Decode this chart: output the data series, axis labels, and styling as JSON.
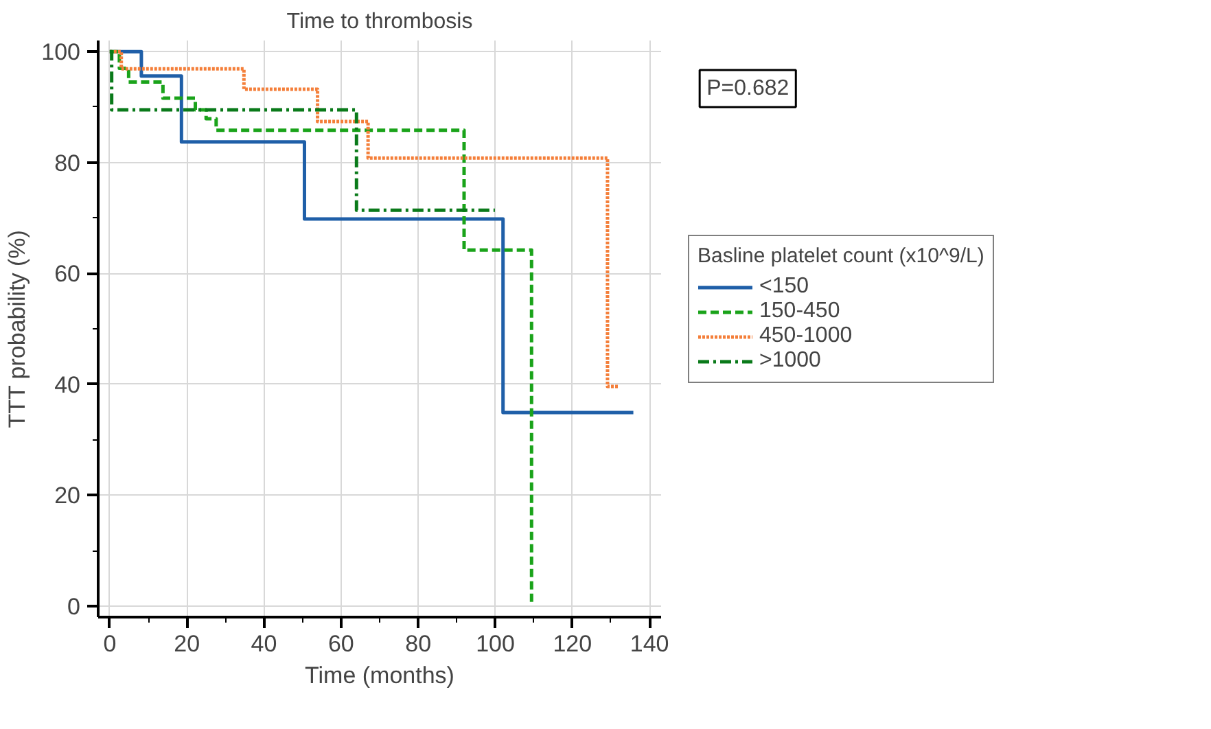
{
  "chart_data": {
    "type": "step",
    "title": "Time to thrombosis",
    "xlabel": "Time (months)",
    "ylabel": "TTT probability (%)",
    "legend_title": "Basline platelet count (x10^9/L)",
    "annotations": [
      "P=0.682"
    ],
    "xlim": [
      -3,
      143
    ],
    "ylim": [
      -2,
      102
    ],
    "xticks": [
      0,
      20,
      40,
      60,
      80,
      100,
      120,
      140
    ],
    "yticks": [
      0,
      20,
      40,
      60,
      80,
      100
    ],
    "grid": true,
    "legend": "right",
    "series": [
      {
        "name": "<150",
        "color": "#1f5fa8",
        "line_style": "solid",
        "x": [
          0,
          8.2,
          18.6,
          50.5,
          102,
          135.8
        ],
        "values": [
          100,
          95.6,
          83.7,
          69.8,
          34.9,
          34.9
        ]
      },
      {
        "name": "150-450",
        "color": "#1aa31a",
        "line_style": "dashed",
        "x": [
          0,
          0.7,
          2.5,
          4.9,
          13.8,
          22.2,
          25,
          27.6,
          91.9,
          109.4
        ],
        "values": [
          100,
          100,
          97,
          94.5,
          91.6,
          89.5,
          87.9,
          85.8,
          64.2,
          0
        ]
      },
      {
        "name": "450-1000",
        "color": "#f47f3a",
        "line_style": "dotted",
        "x": [
          0,
          0.7,
          3,
          34.8,
          53.9,
          67,
          129.1,
          132
        ],
        "values": [
          100,
          100,
          96.9,
          93.2,
          87.4,
          80.8,
          39.6,
          39.6
        ]
      },
      {
        "name": ">1000",
        "color": "#0a7a1a",
        "line_style": "dashdot",
        "x": [
          0,
          0.5,
          64,
          99.9
        ],
        "values": [
          100,
          89.5,
          71.4,
          71.4
        ]
      }
    ]
  }
}
